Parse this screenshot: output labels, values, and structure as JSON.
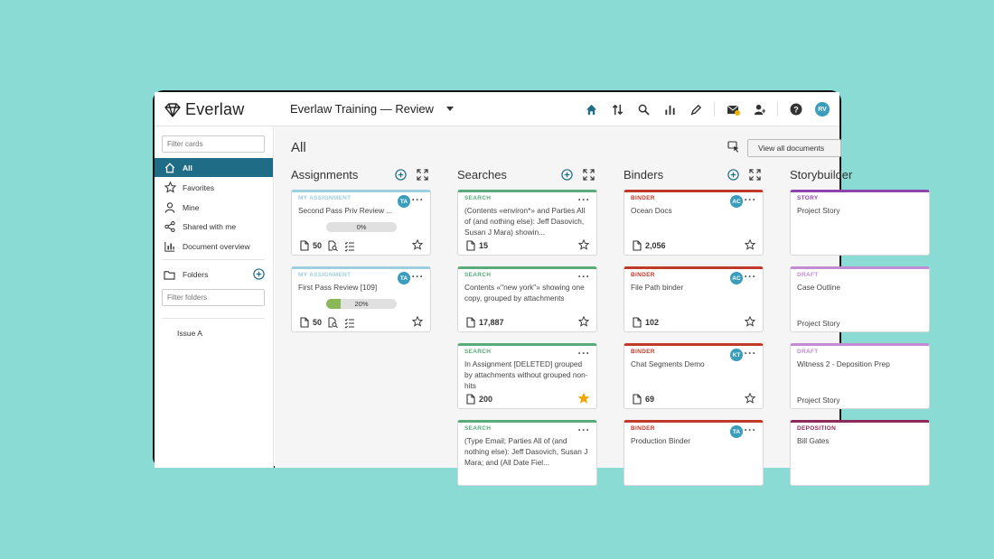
{
  "app": {
    "name": "Everlaw",
    "project": "Everlaw Training — Review"
  },
  "nav_icons": [
    "home-icon",
    "sort-arrows-icon",
    "search-icon",
    "bar-chart-icon",
    "pen-icon",
    "messages-icon",
    "user-icon",
    "help-icon"
  ],
  "user_initials": "RV",
  "sidebar": {
    "filter_cards_placeholder": "Filter cards",
    "items": [
      {
        "label": "All",
        "icon": "home-icon",
        "active": true
      },
      {
        "label": "Favorites",
        "icon": "star-icon"
      },
      {
        "label": "Mine",
        "icon": "person-icon"
      },
      {
        "label": "Shared with me",
        "icon": "share-icon"
      },
      {
        "label": "Document overview",
        "icon": "chart-icon"
      }
    ],
    "folders_label": "Folders",
    "filter_folders_placeholder": "Filter folders",
    "folder_items": [
      "Issue A"
    ]
  },
  "main": {
    "title": "All",
    "view_all_label": "View all documents",
    "columns": [
      {
        "name": "Assignments",
        "cards": [
          {
            "type": "MY ASSIGNMENT",
            "color": "#9ecfe0",
            "title": "Second Pass Priv Review ...",
            "badge": "TA",
            "progress": 0,
            "progress_label": "0%",
            "count": "50",
            "favorite": false
          },
          {
            "type": "MY ASSIGNMENT",
            "color": "#9ecfe0",
            "title": "First Pass Review [109]",
            "badge": "TA",
            "progress": 20,
            "progress_label": "20%",
            "count": "50",
            "favorite": false
          }
        ]
      },
      {
        "name": "Searches",
        "cards": [
          {
            "type": "SEARCH",
            "color": "#5aaa7a",
            "title": "(Contents «environ*» and Parties All of (and nothing else): Jeff Dasovich, Susan J Mara) showin...",
            "count": "15",
            "favorite": false
          },
          {
            "type": "SEARCH",
            "color": "#5aaa7a",
            "title": "Contents «\"new york\"» showing one copy, grouped by attachments",
            "count": "17,887",
            "favorite": false
          },
          {
            "type": "SEARCH",
            "color": "#5aaa7a",
            "title": "In Assignment [DELETED] grouped by attachments without grouped non-hits",
            "count": "200",
            "favorite": true
          },
          {
            "type": "SEARCH",
            "color": "#5aaa7a",
            "title": "(Type Email; Parties All of (and nothing else): Jeff Dasovich, Susan J Mara; and (All Date Fiel...",
            "count": "",
            "favorite": false
          }
        ]
      },
      {
        "name": "Binders",
        "cards": [
          {
            "type": "BINDER",
            "color": "#c0392b",
            "title": "Ocean Docs",
            "badge": "AC",
            "count": "2,056",
            "favorite": false
          },
          {
            "type": "BINDER",
            "color": "#c0392b",
            "title": "File Path binder",
            "badge": "AC",
            "count": "102",
            "favorite": false
          },
          {
            "type": "BINDER",
            "color": "#c0392b",
            "title": "Chat Segments Demo",
            "badge": "KT",
            "count": "69",
            "favorite": false
          },
          {
            "type": "BINDER",
            "color": "#c0392b",
            "title": "Production Binder",
            "badge": "TA",
            "count": "",
            "favorite": false
          }
        ]
      },
      {
        "name": "Storybuilder",
        "cards": [
          {
            "type": "STORY",
            "color": "#8e44ad",
            "title": "Project Story",
            "footer": ""
          },
          {
            "type": "DRAFT",
            "color": "#c38bd3",
            "title": "Case Outline",
            "footer": "Project Story"
          },
          {
            "type": "DRAFT",
            "color": "#c38bd3",
            "title": "Witness 2 - Deposition Prep",
            "footer": "Project Story"
          },
          {
            "type": "DEPOSITION",
            "color": "#8e2a5a",
            "title": "Bill Gates",
            "footer": ""
          }
        ]
      }
    ]
  },
  "accent_color": "#1f6c86"
}
